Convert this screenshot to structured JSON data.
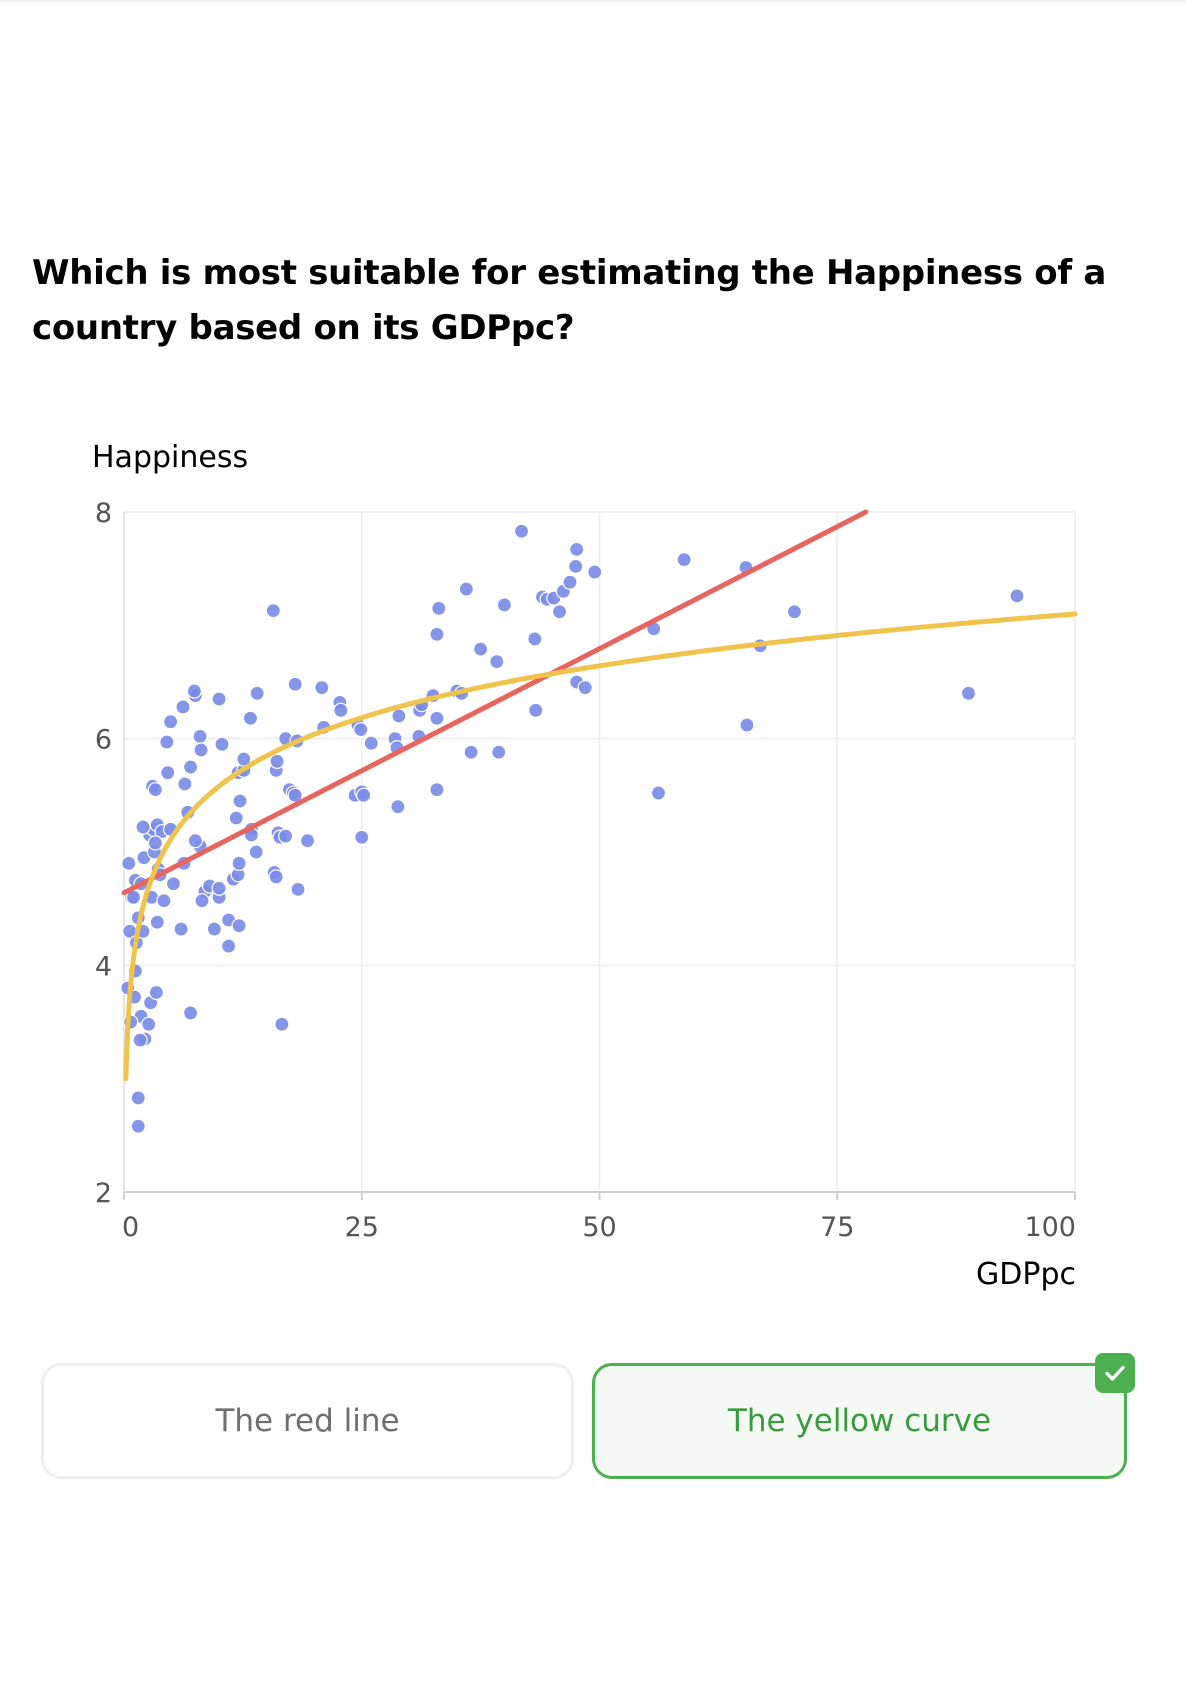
{
  "question": "Which is most suitable for estimating the Happiness of a country based on its GDPpc?",
  "options": [
    {
      "label": "The red line",
      "selected": false
    },
    {
      "label": "The yellow curve",
      "selected": true,
      "status": "correct"
    }
  ],
  "colors": {
    "points": "#7b8ce6",
    "linear_fit": "#e8655f",
    "log_fit": "#f0c44c",
    "correct": "#4caf50"
  },
  "chart_data": {
    "type": "scatter",
    "xlabel": "GDPpc",
    "ylabel": "Happiness",
    "xlim": [
      0,
      100
    ],
    "ylim": [
      2,
      8
    ],
    "xticks": [
      "0",
      "25",
      "50",
      "75",
      "100"
    ],
    "yticks": [
      "2",
      "4",
      "6",
      "8"
    ],
    "grid": true,
    "points": [
      [
        0.5,
        4.9
      ],
      [
        0.8,
        4.6
      ],
      [
        1.2,
        4.75
      ],
      [
        1.5,
        4.42
      ],
      [
        0.6,
        4.3
      ],
      [
        1.3,
        4.2
      ],
      [
        0.4,
        3.8
      ],
      [
        1.1,
        3.72
      ],
      [
        1.8,
        3.55
      ],
      [
        0.7,
        3.5
      ],
      [
        2.2,
        3.35
      ],
      [
        1.7,
        3.34
      ],
      [
        2.6,
        3.48
      ],
      [
        2.8,
        3.67
      ],
      [
        3.4,
        3.76
      ],
      [
        1.5,
        2.83
      ],
      [
        1.5,
        2.58
      ],
      [
        1.2,
        3.95
      ],
      [
        2.0,
        4.3
      ],
      [
        2.9,
        4.6
      ],
      [
        3.5,
        4.38
      ],
      [
        4.2,
        4.57
      ],
      [
        5.2,
        4.72
      ],
      [
        6.0,
        4.32
      ],
      [
        7.0,
        3.58
      ],
      [
        2.1,
        4.95
      ],
      [
        2.7,
        5.15
      ],
      [
        3.1,
        5.2
      ],
      [
        3.5,
        5.24
      ],
      [
        4.0,
        5.18
      ],
      [
        3.2,
        5.0
      ],
      [
        3.3,
        5.08
      ],
      [
        3.6,
        4.85
      ],
      [
        3.8,
        4.8
      ],
      [
        4.9,
        5.2
      ],
      [
        6.3,
        4.9
      ],
      [
        6.7,
        5.35
      ],
      [
        6.4,
        5.6
      ],
      [
        7.0,
        5.75
      ],
      [
        8.0,
        5.05
      ],
      [
        7.5,
        5.1
      ],
      [
        3.0,
        5.58
      ],
      [
        3.3,
        5.55
      ],
      [
        4.6,
        5.7
      ],
      [
        4.5,
        5.97
      ],
      [
        4.9,
        6.15
      ],
      [
        6.2,
        6.28
      ],
      [
        7.5,
        6.38
      ],
      [
        7.4,
        6.42
      ],
      [
        8.0,
        6.02
      ],
      [
        8.1,
        5.9
      ],
      [
        10.0,
        6.35
      ],
      [
        10.3,
        5.95
      ],
      [
        2.0,
        5.22
      ],
      [
        1.8,
        4.72
      ],
      [
        1.0,
        4.6
      ],
      [
        8.5,
        4.65
      ],
      [
        9.0,
        4.7
      ],
      [
        10.0,
        4.6
      ],
      [
        8.2,
        4.57
      ],
      [
        10.0,
        4.68
      ],
      [
        9.5,
        4.32
      ],
      [
        11.0,
        4.4
      ],
      [
        11.0,
        4.17
      ],
      [
        12.1,
        4.35
      ],
      [
        11.5,
        4.76
      ],
      [
        12.0,
        4.8
      ],
      [
        12.1,
        4.9
      ],
      [
        13.4,
        5.2
      ],
      [
        13.4,
        5.15
      ],
      [
        13.9,
        5.0
      ],
      [
        11.8,
        5.3
      ],
      [
        12.2,
        5.45
      ],
      [
        12.0,
        5.7
      ],
      [
        12.6,
        5.72
      ],
      [
        12.6,
        5.82
      ],
      [
        13.3,
        6.18
      ],
      [
        14.0,
        6.4
      ],
      [
        16.0,
        5.72
      ],
      [
        16.1,
        5.8
      ],
      [
        16.2,
        5.17
      ],
      [
        16.4,
        5.13
      ],
      [
        17.0,
        5.14
      ],
      [
        15.8,
        4.82
      ],
      [
        16.0,
        4.78
      ],
      [
        18.3,
        4.67
      ],
      [
        19.3,
        5.1
      ],
      [
        17.4,
        5.55
      ],
      [
        17.8,
        5.52
      ],
      [
        18.0,
        5.5
      ],
      [
        17.0,
        6.0
      ],
      [
        18.2,
        5.98
      ],
      [
        18.0,
        6.48
      ],
      [
        15.7,
        7.13
      ],
      [
        16.6,
        3.48
      ],
      [
        20.8,
        6.45
      ],
      [
        21.0,
        6.1
      ],
      [
        22.7,
        6.32
      ],
      [
        22.8,
        6.25
      ],
      [
        24.3,
        5.5
      ],
      [
        24.6,
        6.12
      ],
      [
        24.9,
        6.08
      ],
      [
        25.0,
        5.53
      ],
      [
        25.2,
        5.5
      ],
      [
        25.0,
        5.13
      ],
      [
        26.0,
        5.96
      ],
      [
        28.5,
        6.0
      ],
      [
        28.7,
        5.92
      ],
      [
        28.9,
        6.2
      ],
      [
        28.8,
        5.4
      ],
      [
        31.0,
        6.02
      ],
      [
        31.1,
        6.25
      ],
      [
        31.3,
        6.3
      ],
      [
        32.5,
        6.38
      ],
      [
        32.9,
        6.18
      ],
      [
        32.9,
        6.92
      ],
      [
        33.1,
        7.15
      ],
      [
        32.9,
        5.55
      ],
      [
        35.0,
        6.42
      ],
      [
        35.5,
        6.4
      ],
      [
        36.0,
        7.32
      ],
      [
        36.5,
        5.88
      ],
      [
        37.5,
        6.79
      ],
      [
        39.2,
        6.68
      ],
      [
        39.4,
        5.88
      ],
      [
        40.0,
        7.18
      ],
      [
        41.8,
        7.83
      ],
      [
        43.2,
        6.88
      ],
      [
        43.3,
        6.25
      ],
      [
        44.0,
        7.25
      ],
      [
        44.5,
        7.23
      ],
      [
        45.2,
        7.24
      ],
      [
        45.8,
        7.12
      ],
      [
        46.2,
        7.3
      ],
      [
        46.9,
        7.38
      ],
      [
        47.5,
        7.52
      ],
      [
        47.6,
        7.67
      ],
      [
        47.6,
        6.5
      ],
      [
        48.5,
        6.45
      ],
      [
        49.5,
        7.47
      ],
      [
        55.7,
        6.97
      ],
      [
        56.2,
        5.52
      ],
      [
        58.9,
        7.58
      ],
      [
        65.4,
        7.51
      ],
      [
        65.5,
        6.12
      ],
      [
        66.9,
        6.82
      ],
      [
        70.5,
        7.12
      ],
      [
        88.8,
        6.4
      ],
      [
        93.9,
        7.26
      ]
    ],
    "fits": [
      {
        "kind": "linear",
        "color": "red",
        "x": [
          0,
          78
        ],
        "y": [
          4.64,
          8.0
        ]
      },
      {
        "kind": "logarithmic",
        "color": "yellow",
        "x": [
          0.2,
          100
        ],
        "y": [
          3.0,
          7.1
        ]
      }
    ]
  }
}
